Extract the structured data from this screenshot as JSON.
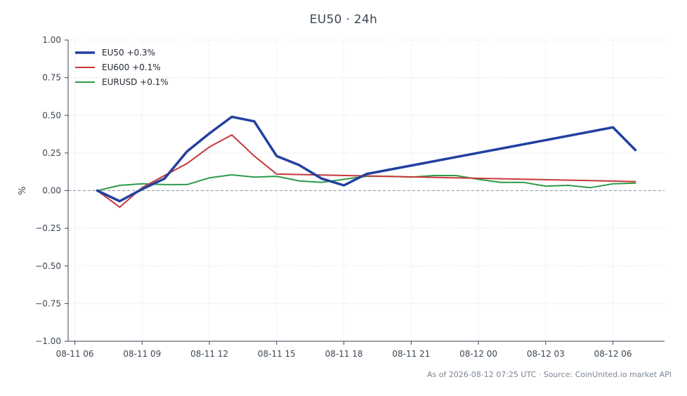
{
  "chart_data": {
    "type": "line",
    "title": "EU50 · 24h",
    "xlabel": "",
    "ylabel": "%",
    "ylim": [
      -1.0,
      1.0
    ],
    "xlim": [
      "2026-08-11 05:42",
      "2026-08-12 08:18"
    ],
    "yticks": [
      -1.0,
      -0.75,
      -0.5,
      -0.25,
      0.0,
      0.25,
      0.5,
      0.75,
      1.0
    ],
    "ytick_labels": [
      "−1.00",
      "−0.75",
      "−0.50",
      "−0.25",
      "0.00",
      "0.25",
      "0.50",
      "0.75",
      "1.00"
    ],
    "xticks": [
      "2026-08-11 06:00",
      "2026-08-11 09:00",
      "2026-08-11 12:00",
      "2026-08-11 15:00",
      "2026-08-11 18:00",
      "2026-08-11 21:00",
      "2026-08-12 00:00",
      "2026-08-12 03:00",
      "2026-08-12 06:00"
    ],
    "xtick_labels": [
      "08-11 06",
      "08-11 09",
      "08-11 12",
      "08-11 15",
      "08-11 18",
      "08-11 21",
      "08-12 00",
      "08-12 03",
      "08-12 06"
    ],
    "grid": true,
    "zero_line": true,
    "legend_position": "top-left",
    "series": [
      {
        "name": "EU50 +0.3%",
        "color": "#2340a0",
        "width": 3.5,
        "x": [
          "2026-08-11 07:00",
          "2026-08-11 08:00",
          "2026-08-11 09:00",
          "2026-08-11 10:00",
          "2026-08-11 11:00",
          "2026-08-11 12:00",
          "2026-08-11 13:00",
          "2026-08-11 14:00",
          "2026-08-11 15:00",
          "2026-08-11 16:00",
          "2026-08-11 17:00",
          "2026-08-11 18:00",
          "2026-08-11 19:00",
          "2026-08-12 06:00",
          "2026-08-12 07:00"
        ],
        "y": [
          0.0,
          -0.07,
          0.01,
          0.08,
          0.26,
          0.38,
          0.49,
          0.46,
          0.23,
          0.17,
          0.08,
          0.035,
          0.11,
          0.42,
          0.27
        ]
      },
      {
        "name": "EU600 +0.1%",
        "color": "#c8373a",
        "width": 2,
        "x": [
          "2026-08-11 07:00",
          "2026-08-11 08:00",
          "2026-08-11 09:00",
          "2026-08-11 10:00",
          "2026-08-11 11:00",
          "2026-08-11 12:00",
          "2026-08-11 13:00",
          "2026-08-11 14:00",
          "2026-08-11 15:00",
          "2026-08-12 07:00"
        ],
        "y": [
          0.0,
          -0.11,
          0.02,
          0.1,
          0.18,
          0.29,
          0.37,
          0.23,
          0.11,
          0.06
        ]
      },
      {
        "name": "EURUSD +0.1%",
        "color": "#2e9a4a",
        "width": 2,
        "x": [
          "2026-08-11 07:00",
          "2026-08-11 08:00",
          "2026-08-11 09:00",
          "2026-08-11 10:00",
          "2026-08-11 11:00",
          "2026-08-11 12:00",
          "2026-08-11 13:00",
          "2026-08-11 14:00",
          "2026-08-11 15:00",
          "2026-08-11 16:00",
          "2026-08-11 17:00",
          "2026-08-11 18:00",
          "2026-08-11 19:00",
          "2026-08-11 20:00",
          "2026-08-11 21:00",
          "2026-08-11 22:00",
          "2026-08-11 23:00",
          "2026-08-12 00:00",
          "2026-08-12 01:00",
          "2026-08-12 02:00",
          "2026-08-12 03:00",
          "2026-08-12 04:00",
          "2026-08-12 05:00",
          "2026-08-12 06:00",
          "2026-08-12 07:00"
        ],
        "y": [
          0.0,
          0.035,
          0.045,
          0.04,
          0.04,
          0.085,
          0.105,
          0.09,
          0.095,
          0.065,
          0.055,
          0.075,
          0.095,
          0.095,
          0.09,
          0.1,
          0.1,
          0.075,
          0.055,
          0.055,
          0.03,
          0.035,
          0.02,
          0.045,
          0.05
        ]
      }
    ]
  },
  "footer": "As of 2026-08-12 07:25 UTC · Source: CoinUnited.io market API",
  "colors": {
    "axis": "#3b4654",
    "grid": "#e3e7ec",
    "zero_line": "#8a9bb0",
    "text": "#3b4654"
  }
}
